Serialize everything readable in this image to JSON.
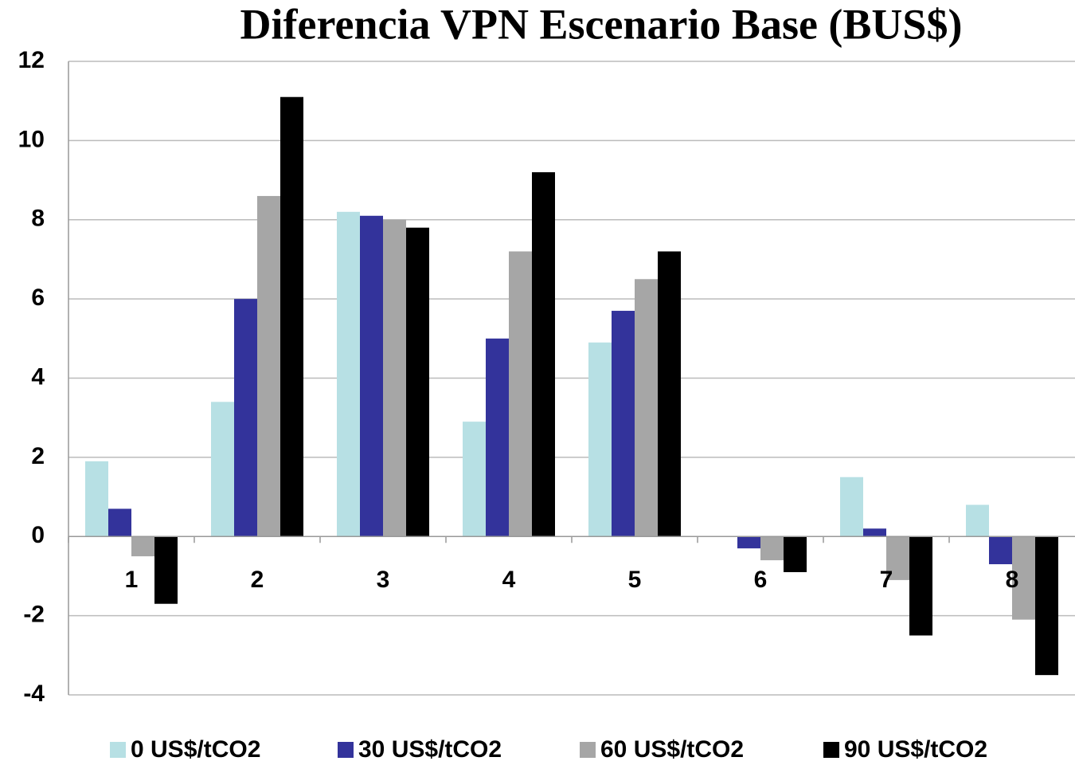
{
  "chart_data": {
    "type": "bar",
    "title": "Diferencia VPN Escenario Base (BUS$)",
    "categories": [
      "1",
      "2",
      "3",
      "4",
      "5",
      "6",
      "7",
      "8"
    ],
    "series": [
      {
        "name": "0 US$/tCO2",
        "color": "#b7e0e4",
        "values": [
          1.9,
          3.4,
          8.2,
          2.9,
          4.9,
          0,
          1.5,
          0.8
        ]
      },
      {
        "name": "30 US$/tCO2",
        "color": "#33339b",
        "values": [
          0.7,
          6,
          8.1,
          5,
          5.7,
          -0.3,
          0.2,
          -0.7
        ]
      },
      {
        "name": "60 US$/tCO2",
        "color": "#a6a6a6",
        "values": [
          -0.5,
          8.6,
          8.0,
          7.2,
          6.5,
          -0.6,
          -1.1,
          -2.1
        ]
      },
      {
        "name": "90 US$/tCO2",
        "color": "#000000",
        "values": [
          -1.7,
          11.1,
          7.8,
          9.2,
          7.2,
          -0.9,
          -2.5,
          -3.5
        ]
      }
    ],
    "ylim": [
      -4,
      12
    ],
    "yticks": [
      -4,
      -2,
      0,
      2,
      4,
      6,
      8,
      10,
      12
    ],
    "grid": true,
    "legend": "bottom"
  }
}
